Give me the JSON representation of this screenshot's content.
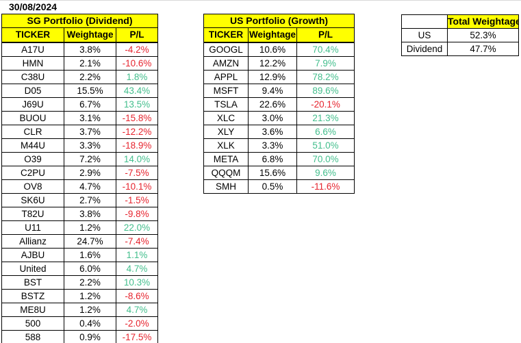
{
  "date": "30/08/2024",
  "colors": {
    "header_bg": "#FFFF00",
    "positive": "#42BE8C",
    "negative": "#E6232D",
    "border": "#000000",
    "top_hairline": "#D9D9D9"
  },
  "sg_portfolio": {
    "title": "SG Portfolio (Dividend)",
    "columns": [
      "TICKER",
      "Weightage",
      "P/L"
    ],
    "rows": [
      {
        "ticker": "A17U",
        "weightage": "3.8%",
        "pl": "-4.2%"
      },
      {
        "ticker": "HMN",
        "weightage": "2.1%",
        "pl": "-10.6%"
      },
      {
        "ticker": "C38U",
        "weightage": "2.2%",
        "pl": "1.8%"
      },
      {
        "ticker": "D05",
        "weightage": "15.5%",
        "pl": "43.4%"
      },
      {
        "ticker": "J69U",
        "weightage": "6.7%",
        "pl": "13.5%"
      },
      {
        "ticker": "BUOU",
        "weightage": "3.1%",
        "pl": "-15.8%"
      },
      {
        "ticker": "CLR",
        "weightage": "3.7%",
        "pl": "-12.2%"
      },
      {
        "ticker": "M44U",
        "weightage": "3.3%",
        "pl": "-18.9%"
      },
      {
        "ticker": "O39",
        "weightage": "7.2%",
        "pl": "14.0%"
      },
      {
        "ticker": "C2PU",
        "weightage": "2.9%",
        "pl": "-7.5%"
      },
      {
        "ticker": "OV8",
        "weightage": "4.7%",
        "pl": "-10.1%"
      },
      {
        "ticker": "SK6U",
        "weightage": "2.7%",
        "pl": "-1.5%"
      },
      {
        "ticker": "T82U",
        "weightage": "3.8%",
        "pl": "-9.8%"
      },
      {
        "ticker": "U11",
        "weightage": "1.2%",
        "pl": "22.0%"
      },
      {
        "ticker": "Allianz",
        "weightage": "24.7%",
        "pl": "-7.4%"
      },
      {
        "ticker": "AJBU",
        "weightage": "1.6%",
        "pl": "1.1%"
      },
      {
        "ticker": "United",
        "weightage": "6.0%",
        "pl": "4.7%"
      },
      {
        "ticker": "BST",
        "weightage": "2.2%",
        "pl": "10.3%"
      },
      {
        "ticker": "BSTZ",
        "weightage": "1.2%",
        "pl": "-8.6%"
      },
      {
        "ticker": "ME8U",
        "weightage": "1.2%",
        "pl": "4.7%"
      },
      {
        "ticker": "500",
        "weightage": "0.4%",
        "pl": "-2.0%"
      },
      {
        "ticker": "588",
        "weightage": "0.9%",
        "pl": "-17.5%"
      }
    ]
  },
  "us_portfolio": {
    "title": "US Portfolio (Growth)",
    "columns": [
      "TICKER",
      "Weightage",
      "P/L"
    ],
    "rows": [
      {
        "ticker": "GOOGL",
        "weightage": "10.6%",
        "pl": "70.4%"
      },
      {
        "ticker": "AMZN",
        "weightage": "12.2%",
        "pl": "7.9%"
      },
      {
        "ticker": "APPL",
        "weightage": "12.9%",
        "pl": "78.2%"
      },
      {
        "ticker": "MSFT",
        "weightage": "9.4%",
        "pl": "89.6%"
      },
      {
        "ticker": "TSLA",
        "weightage": "22.6%",
        "pl": "-20.1%"
      },
      {
        "ticker": "XLC",
        "weightage": "3.0%",
        "pl": "21.3%"
      },
      {
        "ticker": "XLY",
        "weightage": "3.6%",
        "pl": "6.6%"
      },
      {
        "ticker": "XLK",
        "weightage": "3.3%",
        "pl": "51.0%"
      },
      {
        "ticker": "META",
        "weightage": "6.8%",
        "pl": "70.0%"
      },
      {
        "ticker": "QQQM",
        "weightage": "15.6%",
        "pl": "9.6%"
      },
      {
        "ticker": "SMH",
        "weightage": "0.5%",
        "pl": "-11.6%"
      }
    ]
  },
  "total_weightage": {
    "title": "Total Weightage",
    "rows": [
      {
        "label": "US",
        "value": "52.3%"
      },
      {
        "label": "Dividend",
        "value": "47.7%"
      }
    ]
  }
}
